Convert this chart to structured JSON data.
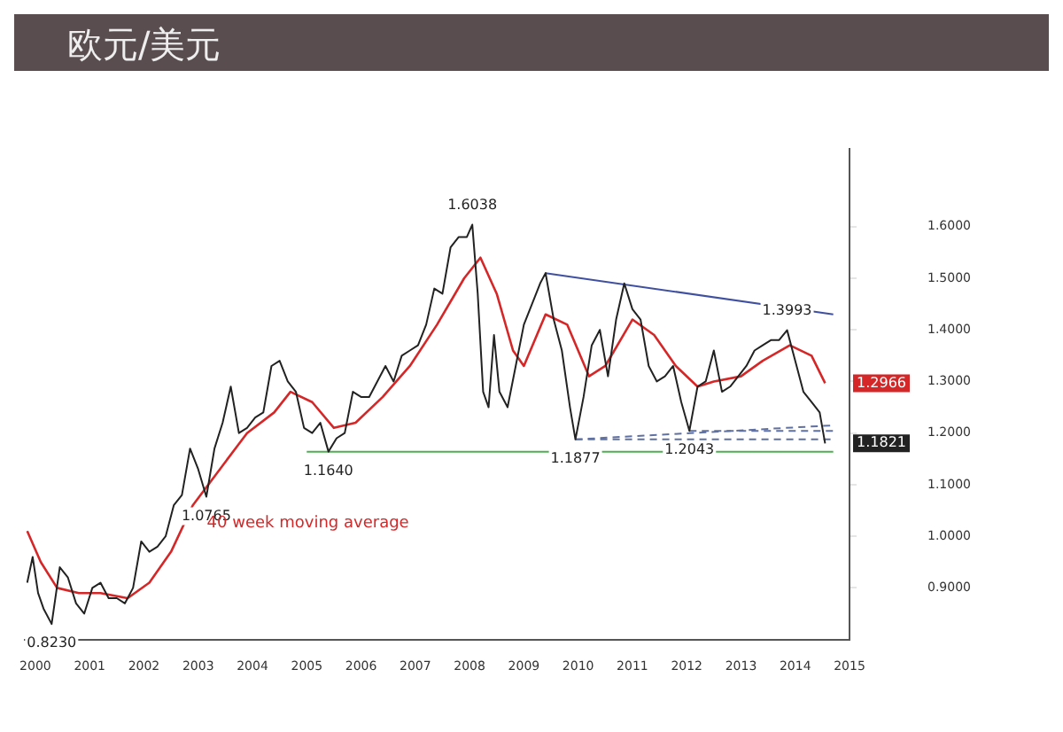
{
  "chart_data": {
    "type": "line",
    "title": "欧元/美元",
    "xlim": [
      1999.8,
      2015.0
    ],
    "ylim": [
      0.8,
      1.75
    ],
    "xticks": [
      2000,
      2001,
      2002,
      2003,
      2004,
      2005,
      2006,
      2007,
      2008,
      2009,
      2010,
      2011,
      2012,
      2013,
      2014,
      2015
    ],
    "yticks": [
      {
        "value": 0.9,
        "label": "0.9000"
      },
      {
        "value": 1.0,
        "label": "1.0000"
      },
      {
        "value": 1.1,
        "label": "1.1000"
      },
      {
        "value": 1.2,
        "label": "1.2000"
      },
      {
        "value": 1.3,
        "label": "1.3000"
      },
      {
        "value": 1.4,
        "label": "1.4000"
      },
      {
        "value": 1.5,
        "label": "1.5000"
      },
      {
        "value": 1.6,
        "label": "1.6000"
      }
    ],
    "grid": false,
    "legend": false,
    "marker": "none",
    "series": [
      {
        "color": "#222222",
        "line_style": "solid",
        "x": [
          1999.85,
          1999.95,
          2000.05,
          2000.15,
          2000.3,
          2000.45,
          2000.6,
          2000.75,
          2000.9,
          2001.05,
          2001.2,
          2001.35,
          2001.5,
          2001.65,
          2001.8,
          2001.95,
          2002.1,
          2002.25,
          2002.4,
          2002.55,
          2002.7,
          2002.85,
          2003.0,
          2003.15,
          2003.3,
          2003.45,
          2003.6,
          2003.75,
          2003.9,
          2004.05,
          2004.2,
          2004.35,
          2004.5,
          2004.65,
          2004.8,
          2004.95,
          2005.1,
          2005.25,
          2005.4,
          2005.55,
          2005.7,
          2005.85,
          2006.0,
          2006.15,
          2006.3,
          2006.45,
          2006.6,
          2006.75,
          2006.9,
          2007.05,
          2007.2,
          2007.35,
          2007.5,
          2007.65,
          2007.8,
          2007.95,
          2008.05,
          2008.15,
          2008.25,
          2008.35,
          2008.45,
          2008.55,
          2008.7,
          2008.85,
          2009.0,
          2009.15,
          2009.3,
          2009.4,
          2009.55,
          2009.7,
          2009.85,
          2009.95,
          2010.1,
          2010.25,
          2010.4,
          2010.55,
          2010.7,
          2010.85,
          2011.0,
          2011.15,
          2011.3,
          2011.45,
          2011.6,
          2011.75,
          2011.9,
          2012.05,
          2012.2,
          2012.35,
          2012.5,
          2012.65,
          2012.8,
          2012.95,
          2013.1,
          2013.25,
          2013.4,
          2013.55,
          2013.7,
          2013.85,
          2014.0,
          2014.15,
          2014.3,
          2014.45,
          2014.55
        ],
        "values": [
          0.91,
          0.96,
          0.89,
          0.86,
          0.83,
          0.94,
          0.92,
          0.87,
          0.85,
          0.9,
          0.91,
          0.88,
          0.88,
          0.87,
          0.9,
          0.99,
          0.97,
          0.98,
          1.0,
          1.06,
          1.08,
          1.17,
          1.13,
          1.0765,
          1.17,
          1.22,
          1.29,
          1.2,
          1.21,
          1.23,
          1.24,
          1.33,
          1.34,
          1.3,
          1.28,
          1.21,
          1.2,
          1.22,
          1.164,
          1.19,
          1.2,
          1.28,
          1.27,
          1.27,
          1.3,
          1.33,
          1.3,
          1.35,
          1.36,
          1.37,
          1.41,
          1.48,
          1.47,
          1.56,
          1.58,
          1.58,
          1.6038,
          1.47,
          1.28,
          1.25,
          1.39,
          1.28,
          1.25,
          1.33,
          1.41,
          1.45,
          1.49,
          1.51,
          1.42,
          1.36,
          1.25,
          1.1877,
          1.27,
          1.37,
          1.4,
          1.31,
          1.42,
          1.49,
          1.44,
          1.42,
          1.33,
          1.3,
          1.31,
          1.33,
          1.26,
          1.2043,
          1.29,
          1.3,
          1.36,
          1.28,
          1.29,
          1.31,
          1.33,
          1.36,
          1.37,
          1.38,
          1.38,
          1.3993,
          1.34,
          1.28,
          1.26,
          1.24,
          1.18
        ]
      },
      {
        "name": "40 week moving average",
        "color": "#d62728",
        "line_style": "solid",
        "x": [
          1999.85,
          2000.1,
          2000.4,
          2000.8,
          2001.2,
          2001.7,
          2002.1,
          2002.5,
          2002.9,
          2003.4,
          2003.9,
          2004.4,
          2004.7,
          2005.1,
          2005.5,
          2005.9,
          2006.4,
          2006.9,
          2007.4,
          2007.9,
          2008.2,
          2008.5,
          2008.8,
          2009.0,
          2009.4,
          2009.8,
          2010.2,
          2010.5,
          2011.0,
          2011.4,
          2011.8,
          2012.2,
          2012.5,
          2013.0,
          2013.4,
          2013.9,
          2014.3,
          2014.55
        ],
        "values": [
          1.01,
          0.95,
          0.9,
          0.89,
          0.89,
          0.88,
          0.91,
          0.97,
          1.06,
          1.13,
          1.2,
          1.24,
          1.28,
          1.26,
          1.21,
          1.22,
          1.27,
          1.33,
          1.41,
          1.5,
          1.54,
          1.47,
          1.36,
          1.33,
          1.43,
          1.41,
          1.31,
          1.33,
          1.42,
          1.39,
          1.33,
          1.29,
          1.3,
          1.31,
          1.34,
          1.37,
          1.35,
          1.2966
        ]
      },
      {
        "color": "#4050a0",
        "line_style": "solid",
        "x": [
          2009.4,
          2014.7
        ],
        "values": [
          1.51,
          1.43
        ]
      },
      {
        "color": "#6070a0",
        "line_style": "dashed",
        "x": [
          2009.95,
          2014.7
        ],
        "values": [
          1.1877,
          1.215
        ]
      },
      {
        "color": "#6070a0",
        "line_style": "dashed",
        "x": [
          2012.05,
          2014.7
        ],
        "values": [
          1.2043,
          1.2043
        ]
      },
      {
        "color": "#6070a0",
        "line_style": "dashed",
        "x": [
          2009.95,
          2014.7
        ],
        "values": [
          1.1877,
          1.1877
        ]
      },
      {
        "color": "#4caf50",
        "line_style": "solid",
        "x": [
          2005.0,
          2014.7
        ],
        "values": [
          1.164,
          1.164
        ]
      }
    ],
    "annotations": [
      {
        "text": "0.8230",
        "x": 2000.3,
        "y": 0.83
      },
      {
        "text": "1.0765",
        "x": 2003.15,
        "y": 1.0765
      },
      {
        "text": "1.1640",
        "x": 2005.4,
        "y": 1.164
      },
      {
        "text": "1.6038",
        "x": 2008.05,
        "y": 1.6038
      },
      {
        "text": "1.1877",
        "x": 2009.95,
        "y": 1.1877
      },
      {
        "text": "1.2043",
        "x": 2012.05,
        "y": 1.2043
      },
      {
        "text": "1.3993",
        "x": 2013.85,
        "y": 1.3993
      },
      "1.1821",
      "1.2966"
    ]
  }
}
